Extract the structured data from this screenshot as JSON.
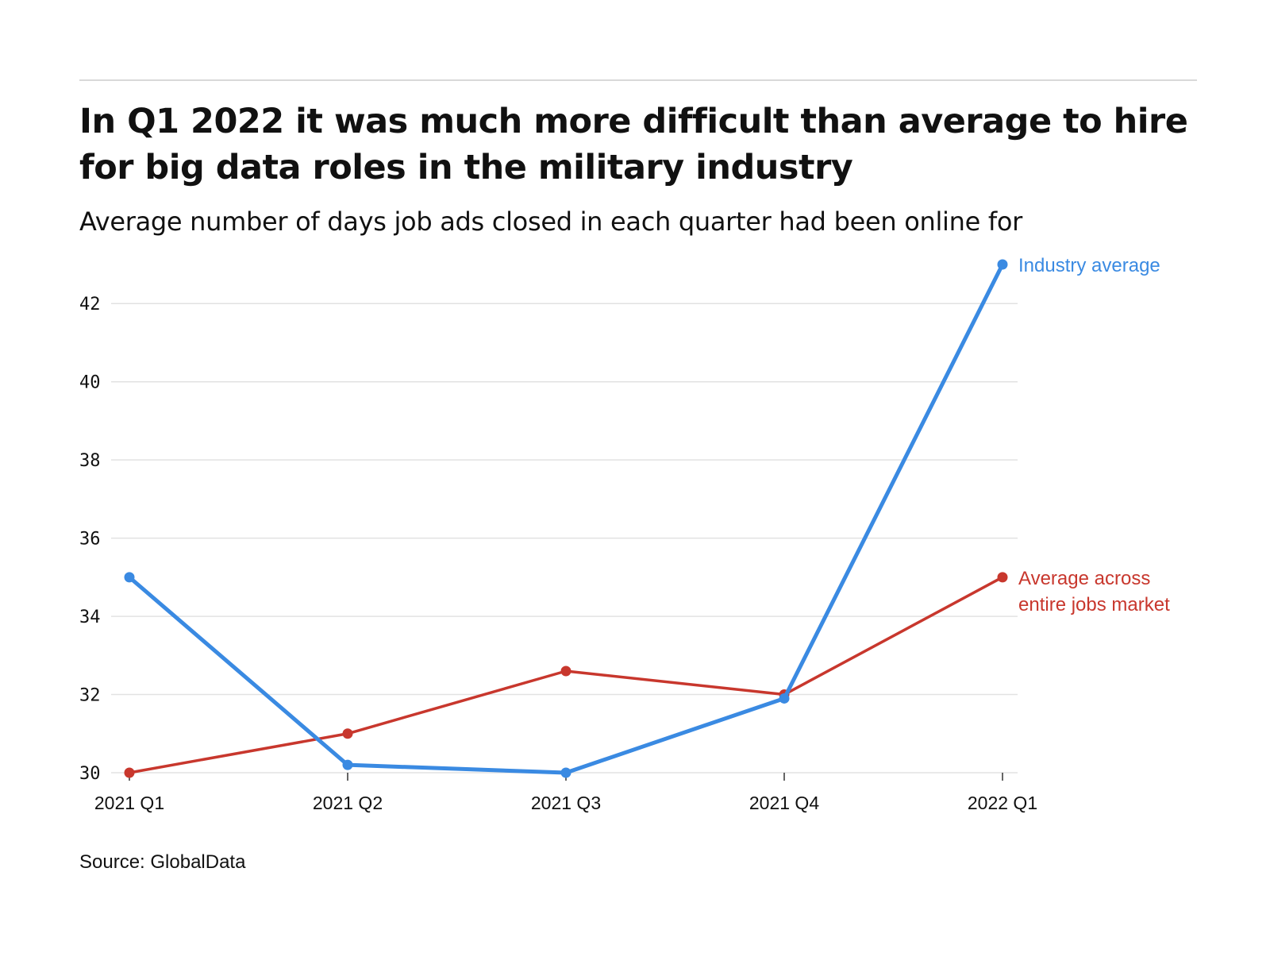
{
  "header": {
    "title": "In Q1 2022 it was much more difficult than average to hire for big data roles in the military industry",
    "subtitle": "Average number of days job ads closed in each quarter had been online for"
  },
  "footer": {
    "source": "Source: GlobalData"
  },
  "colors": {
    "industry": "#3a8ae2",
    "market": "#c8372d",
    "grid": "#e2e2e2",
    "axis_text": "#111111"
  },
  "chart_data": {
    "type": "line",
    "title": "In Q1 2022 it was much more difficult than average to hire for big data roles in the military industry",
    "subtitle": "Average number of days job ads closed in each quarter had been online for",
    "xlabel": "",
    "ylabel": "",
    "categories": [
      "2021 Q1",
      "2021 Q2",
      "2021 Q3",
      "2021 Q4",
      "2022 Q1"
    ],
    "ylim": [
      30,
      43
    ],
    "yticks": [
      30,
      32,
      34,
      36,
      38,
      40,
      42
    ],
    "grid": true,
    "legend": "direct labels at line ends",
    "series": [
      {
        "name": "Industry average",
        "label_lines": [
          "Industry average"
        ],
        "color": "#3a8ae2",
        "values": [
          35,
          30.2,
          30,
          31.9,
          43
        ]
      },
      {
        "name": "Average across entire jobs market",
        "label_lines": [
          "Average across",
          "entire jobs market"
        ],
        "color": "#c8372d",
        "values": [
          30,
          31,
          32.6,
          32,
          35
        ]
      }
    ]
  }
}
